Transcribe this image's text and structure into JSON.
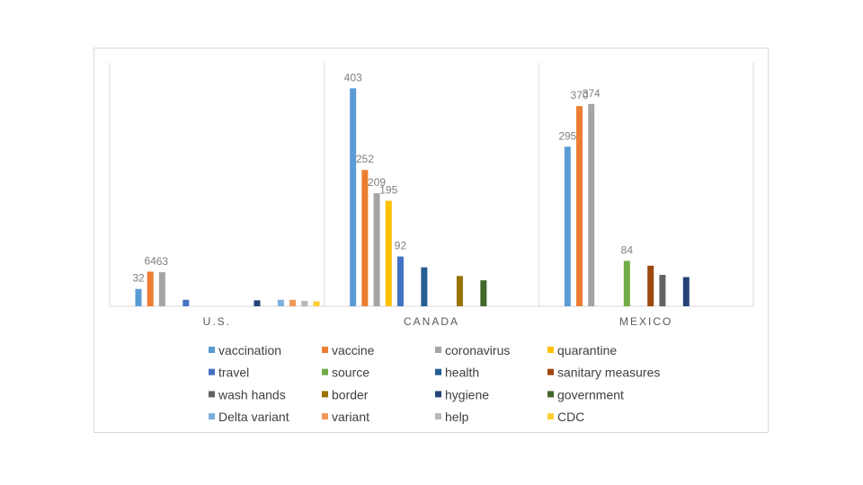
{
  "chart_data": {
    "type": "bar",
    "title": "",
    "xlabel": "",
    "ylabel": "",
    "categories": [
      "U.S.",
      "CANADA",
      "MEXICO"
    ],
    "grid": false,
    "legend_position": "bottom",
    "series": [
      {
        "name": "vaccination",
        "color": "#5b9bd5",
        "values": [
          32,
          403,
          295
        ],
        "show_labels": [
          true,
          true,
          true
        ]
      },
      {
        "name": "vaccine",
        "color": "#ed7d31",
        "values": [
          64,
          252,
          370
        ],
        "show_labels": [
          true,
          true,
          true
        ]
      },
      {
        "name": "coronavirus",
        "color": "#a5a5a5",
        "values": [
          63,
          209,
          374
        ],
        "show_labels": [
          true,
          true,
          true
        ]
      },
      {
        "name": "quarantine",
        "color": "#ffc000",
        "values": [
          null,
          195,
          null
        ],
        "show_labels": [
          false,
          true,
          false
        ]
      },
      {
        "name": "travel",
        "color": "#4472c4",
        "values": [
          12,
          92,
          null
        ],
        "show_labels": [
          false,
          true,
          false
        ]
      },
      {
        "name": "source",
        "color": "#70ad47",
        "values": [
          null,
          null,
          84
        ],
        "show_labels": [
          false,
          false,
          true
        ]
      },
      {
        "name": "health",
        "color": "#255e91",
        "values": [
          null,
          72,
          null
        ],
        "show_labels": [
          false,
          false,
          false
        ]
      },
      {
        "name": "sanitary measures",
        "color": "#9e480e",
        "values": [
          null,
          null,
          75
        ],
        "show_labels": [
          false,
          false,
          false
        ]
      },
      {
        "name": "wash hands",
        "color": "#636363",
        "values": [
          null,
          null,
          58
        ],
        "show_labels": [
          false,
          false,
          false
        ]
      },
      {
        "name": "border",
        "color": "#997300",
        "values": [
          null,
          56,
          null
        ],
        "show_labels": [
          false,
          false,
          false
        ]
      },
      {
        "name": "hygiene",
        "color": "#264478",
        "values": [
          11,
          null,
          54
        ],
        "show_labels": [
          false,
          false,
          false
        ]
      },
      {
        "name": "government",
        "color": "#43682b",
        "values": [
          null,
          48,
          null
        ],
        "show_labels": [
          false,
          false,
          false
        ]
      },
      {
        "name": "Delta variant",
        "color": "#7cafdd",
        "values": [
          12,
          null,
          null
        ],
        "show_labels": [
          false,
          false,
          false
        ]
      },
      {
        "name": "variant",
        "color": "#f1975a",
        "values": [
          12,
          null,
          null
        ],
        "show_labels": [
          false,
          false,
          false
        ]
      },
      {
        "name": "help",
        "color": "#b7b7b7",
        "values": [
          10,
          null,
          null
        ],
        "show_labels": [
          false,
          false,
          false
        ]
      },
      {
        "name": "CDC",
        "color": "#ffcd33",
        "values": [
          9,
          null,
          null
        ],
        "show_labels": [
          false,
          false,
          false
        ]
      }
    ]
  }
}
